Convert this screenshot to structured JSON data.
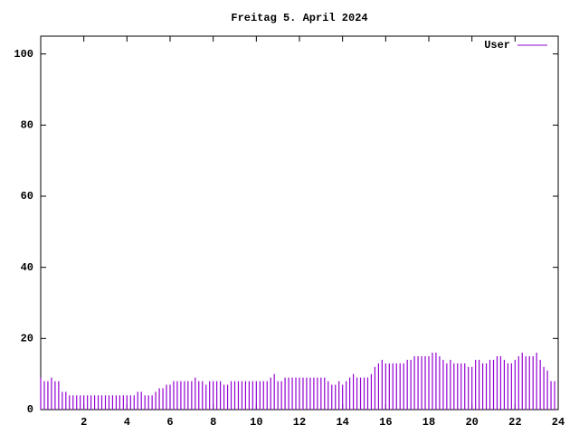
{
  "chart_data": {
    "type": "impulse",
    "title": "Freitag 5. April 2024",
    "series": [
      {
        "name": "User",
        "color": "#9400d3",
        "x": [
          0,
          0.167,
          0.333,
          0.5,
          0.667,
          0.833,
          1,
          1.167,
          1.333,
          1.5,
          1.667,
          1.833,
          2,
          2.167,
          2.333,
          2.5,
          2.667,
          2.833,
          3,
          3.167,
          3.333,
          3.5,
          3.667,
          3.833,
          4,
          4.167,
          4.333,
          4.5,
          4.667,
          4.833,
          5,
          5.167,
          5.333,
          5.5,
          5.667,
          5.833,
          6,
          6.167,
          6.333,
          6.5,
          6.667,
          6.833,
          7,
          7.167,
          7.333,
          7.5,
          7.667,
          7.833,
          8,
          8.167,
          8.333,
          8.5,
          8.667,
          8.833,
          9,
          9.167,
          9.333,
          9.5,
          9.667,
          9.833,
          10,
          10.167,
          10.333,
          10.5,
          10.667,
          10.833,
          11,
          11.167,
          11.333,
          11.5,
          11.667,
          11.833,
          12,
          12.167,
          12.333,
          12.5,
          12.667,
          12.833,
          13,
          13.167,
          13.333,
          13.5,
          13.667,
          13.833,
          14,
          14.167,
          14.333,
          14.5,
          14.667,
          14.833,
          15,
          15.167,
          15.333,
          15.5,
          15.667,
          15.833,
          16,
          16.167,
          16.333,
          16.5,
          16.667,
          16.833,
          17,
          17.167,
          17.333,
          17.5,
          17.667,
          17.833,
          18,
          18.167,
          18.333,
          18.5,
          18.667,
          18.833,
          19,
          19.167,
          19.333,
          19.5,
          19.667,
          19.833,
          20,
          20.167,
          20.333,
          20.5,
          20.667,
          20.833,
          21,
          21.167,
          21.333,
          21.5,
          21.667,
          21.833,
          22,
          22.167,
          22.333,
          22.5,
          22.667,
          22.833,
          23,
          23.167,
          23.333,
          23.5,
          23.667,
          23.833
        ],
        "values": [
          9,
          8,
          8,
          9,
          8,
          8,
          5,
          5,
          4,
          4,
          4,
          4,
          4,
          4,
          4,
          4,
          4,
          4,
          4,
          4,
          4,
          4,
          4,
          4,
          4,
          4,
          4,
          5,
          5,
          4,
          4,
          4,
          5,
          6,
          6,
          7,
          7,
          8,
          8,
          8,
          8,
          8,
          8,
          9,
          8,
          8,
          7,
          8,
          8,
          8,
          8,
          7,
          7,
          8,
          8,
          8,
          8,
          8,
          8,
          8,
          8,
          8,
          8,
          8,
          9,
          10,
          8,
          8,
          9,
          9,
          9,
          9,
          9,
          9,
          9,
          9,
          9,
          9,
          9,
          9,
          8,
          7,
          7,
          8,
          7,
          8,
          9,
          10,
          9,
          9,
          9,
          9,
          10,
          12,
          13,
          14,
          13,
          13,
          13,
          13,
          13,
          13,
          14,
          14,
          15,
          15,
          15,
          15,
          15,
          16,
          16,
          15,
          14,
          13,
          14,
          13,
          13,
          13,
          13,
          12,
          12,
          14,
          14,
          13,
          13,
          14,
          14,
          15,
          15,
          14,
          13,
          13,
          14,
          15,
          16,
          15,
          15,
          15,
          16,
          14,
          12,
          11,
          8,
          8
        ]
      }
    ],
    "xlim": [
      0,
      24
    ],
    "xticks": [
      2,
      4,
      6,
      8,
      10,
      12,
      14,
      16,
      18,
      20,
      22,
      24
    ],
    "ylim": [
      0,
      105
    ],
    "yticks": [
      0,
      20,
      40,
      60,
      80,
      100
    ],
    "legend": "top-right"
  }
}
